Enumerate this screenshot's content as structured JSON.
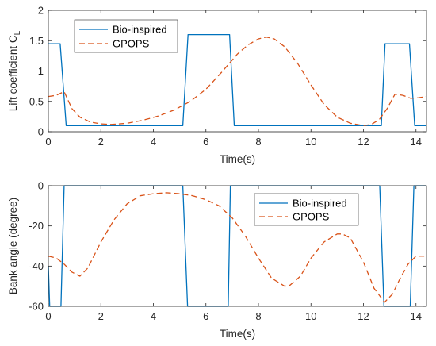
{
  "chart_data": [
    {
      "type": "line",
      "xlabel": "Time(s)",
      "ylabel": "Lift coefficient C",
      "ylabel_subscript": "L",
      "xlim": [
        0,
        14.4
      ],
      "ylim": [
        0,
        2
      ],
      "xticks": [
        0,
        2,
        4,
        6,
        8,
        10,
        12,
        14
      ],
      "yticks": [
        0,
        0.5,
        1,
        1.5,
        2
      ],
      "ytick_labels": [
        "0",
        "0.5",
        "1",
        "1.5",
        "2"
      ],
      "legend_position": "top-left",
      "series": [
        {
          "name": "Bio-inspired",
          "color": "#0072BD",
          "style": "solid",
          "x": [
            0,
            0.45,
            0.68,
            5.12,
            5.32,
            6.9,
            7.08,
            12.68,
            12.82,
            13.75,
            13.95,
            14.4
          ],
          "y": [
            1.45,
            1.45,
            0.1,
            0.1,
            1.6,
            1.6,
            0.1,
            0.1,
            1.45,
            1.45,
            0.1,
            0.1
          ]
        },
        {
          "name": "GPOPS",
          "color": "#D95319",
          "style": "dashed",
          "x": [
            0,
            0.3,
            0.6,
            0.9,
            1.2,
            1.6,
            2.0,
            2.4,
            3.0,
            3.6,
            4.2,
            4.8,
            5.4,
            6.0,
            6.6,
            7.2,
            7.6,
            8.0,
            8.3,
            8.6,
            9.0,
            9.5,
            10.0,
            10.5,
            11.0,
            11.5,
            12.0,
            12.3,
            12.6,
            12.9,
            13.2,
            13.5,
            13.8,
            14.1,
            14.4
          ],
          "y": [
            0.58,
            0.6,
            0.66,
            0.38,
            0.24,
            0.16,
            0.13,
            0.12,
            0.14,
            0.19,
            0.26,
            0.36,
            0.5,
            0.7,
            0.98,
            1.28,
            1.43,
            1.53,
            1.56,
            1.53,
            1.4,
            1.12,
            0.77,
            0.45,
            0.24,
            0.14,
            0.1,
            0.12,
            0.2,
            0.38,
            0.62,
            0.6,
            0.55,
            0.56,
            0.58
          ]
        }
      ]
    },
    {
      "type": "line",
      "xlabel": "Time(s)",
      "ylabel": "Bank angle (degree)",
      "xlim": [
        0,
        14.4
      ],
      "ylim": [
        -60,
        0
      ],
      "xticks": [
        0,
        2,
        4,
        6,
        8,
        10,
        12,
        14
      ],
      "yticks": [
        -60,
        -40,
        -20,
        0
      ],
      "ytick_labels": [
        "-60",
        "-40",
        "-20",
        "0"
      ],
      "legend_position": "top-right",
      "series": [
        {
          "name": "Bio-inspired",
          "color": "#0072BD",
          "style": "solid",
          "x": [
            0,
            0.05,
            0.48,
            0.6,
            0.64,
            5.12,
            5.3,
            5.34,
            6.85,
            6.93,
            6.98,
            12.62,
            12.78,
            12.82,
            13.78,
            13.92,
            13.96,
            14.4
          ],
          "y": [
            -40,
            -60,
            -60,
            0,
            0,
            0,
            -60,
            -60,
            -60,
            0,
            0,
            0,
            -60,
            -60,
            -60,
            0,
            0,
            0
          ]
        },
        {
          "name": "GPOPS",
          "color": "#D95319",
          "style": "dashed",
          "x": [
            0,
            0.3,
            0.6,
            0.9,
            1.2,
            1.5,
            2.0,
            2.5,
            3.0,
            3.5,
            4.0,
            4.5,
            5.0,
            5.5,
            6.0,
            6.5,
            7.0,
            7.5,
            8.0,
            8.5,
            9.0,
            9.2,
            9.6,
            10.0,
            10.5,
            11.0,
            11.2,
            11.5,
            12.0,
            12.4,
            12.8,
            13.1,
            13.4,
            13.7,
            14.0,
            14.4
          ],
          "y": [
            -35,
            -36,
            -39,
            -43,
            -45,
            -41,
            -28,
            -17,
            -9,
            -5,
            -4,
            -3.5,
            -4,
            -5,
            -7,
            -10,
            -16,
            -25,
            -36,
            -46,
            -50,
            -49.5,
            -45,
            -36,
            -28,
            -24,
            -24,
            -26,
            -38,
            -51,
            -58,
            -54,
            -46,
            -39,
            -35,
            -35
          ]
        }
      ]
    }
  ]
}
